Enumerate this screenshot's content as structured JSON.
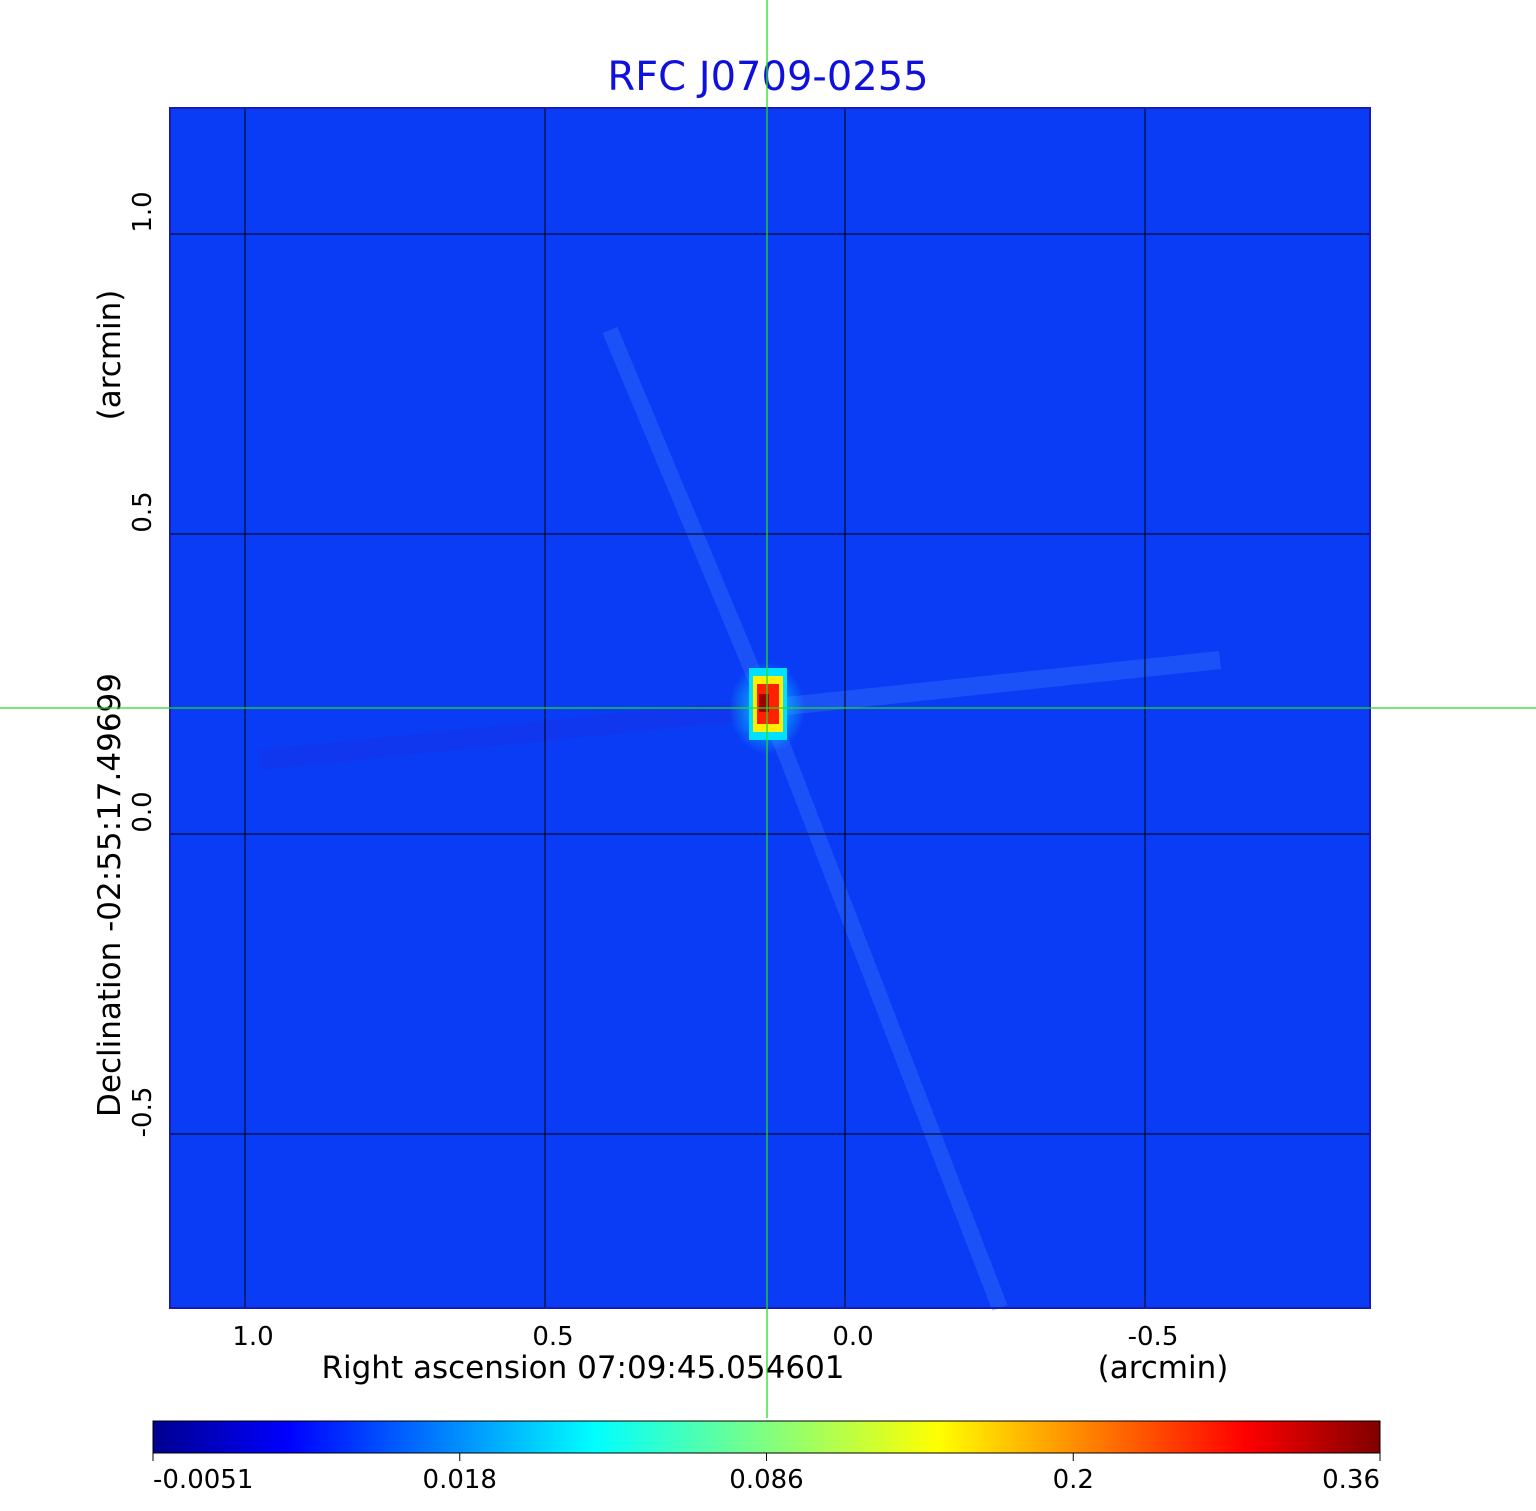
{
  "chart_data": {
    "type": "heatmap",
    "title": "RFC J0709-0255",
    "xlabel": "Right ascension  07:09:45.054601",
    "xunit": "(arcmin)",
    "ylabel": "Declination  -02:55:17.49699",
    "yunit": "(arcmin)",
    "x_ticks": [
      "1.0",
      "0.5",
      "0.0",
      "-0.5"
    ],
    "y_ticks": [
      "1.0",
      "0.5",
      "0.0",
      "-0.5"
    ],
    "xlim": [
      1.125,
      -0.875
    ],
    "ylim": [
      -0.79,
      1.21
    ],
    "x_tick_values": [
      1.0,
      0.5,
      0.0,
      -0.5
    ],
    "y_tick_values": [
      1.0,
      0.5,
      0.0,
      -0.5
    ],
    "grid": true,
    "crosshair": {
      "x": 0.13,
      "y": 0.21,
      "color": "#22dd22"
    },
    "source_peak": {
      "x": 0.13,
      "y": 0.21,
      "value": 0.36
    },
    "background_color": "#0a3cf5",
    "colormap": "jet",
    "colorbar": {
      "tick_labels": [
        "-0.0051",
        "0.018",
        "0.086",
        "0.2",
        "0.36"
      ],
      "tick_values": [
        -0.0051,
        0.018,
        0.086,
        0.2,
        0.36
      ]
    }
  }
}
